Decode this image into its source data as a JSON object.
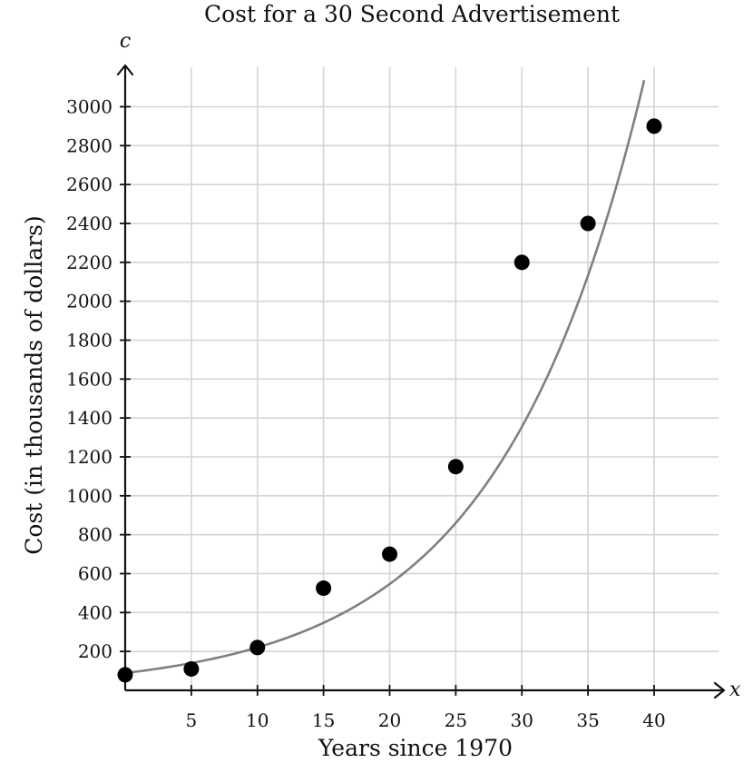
{
  "chart_data": {
    "type": "scatter",
    "title": "Cost for a 30 Second Advertisement",
    "xlabel": "Years since 1970",
    "ylabel": "Cost (in thousands of dollars)",
    "x_var": "x",
    "y_var": "c",
    "xlim": [
      0,
      44
    ],
    "ylim": [
      0,
      3150
    ],
    "x_ticks": [
      5,
      10,
      15,
      20,
      25,
      30,
      35,
      40
    ],
    "x_tick_labels": [
      "5",
      "10",
      "15",
      "20",
      "25",
      "30",
      "35",
      "40"
    ],
    "y_ticks": [
      200,
      400,
      600,
      800,
      1000,
      1200,
      1400,
      1600,
      1800,
      2000,
      2200,
      2400,
      2600,
      2800,
      3000
    ],
    "y_tick_labels": [
      "200",
      "400",
      "600",
      "800",
      "1000",
      "1200",
      "1400",
      "1600",
      "1800",
      "2000",
      "2200",
      "2400",
      "2600",
      "2800",
      "3000"
    ],
    "grid": true,
    "points": [
      {
        "x": 0,
        "y": 80
      },
      {
        "x": 5,
        "y": 110
      },
      {
        "x": 10,
        "y": 220
      },
      {
        "x": 15,
        "y": 525
      },
      {
        "x": 20,
        "y": 700
      },
      {
        "x": 25,
        "y": 1150
      },
      {
        "x": 30,
        "y": 2200
      },
      {
        "x": 35,
        "y": 2400
      },
      {
        "x": 40,
        "y": 2900
      }
    ],
    "fit_curve": {
      "type": "exponential",
      "a": 89,
      "b": 1.095
    }
  },
  "colors": {
    "points": "#000000",
    "curve": "#808080",
    "grid": "#d4d4d4",
    "axis": "#111111"
  }
}
